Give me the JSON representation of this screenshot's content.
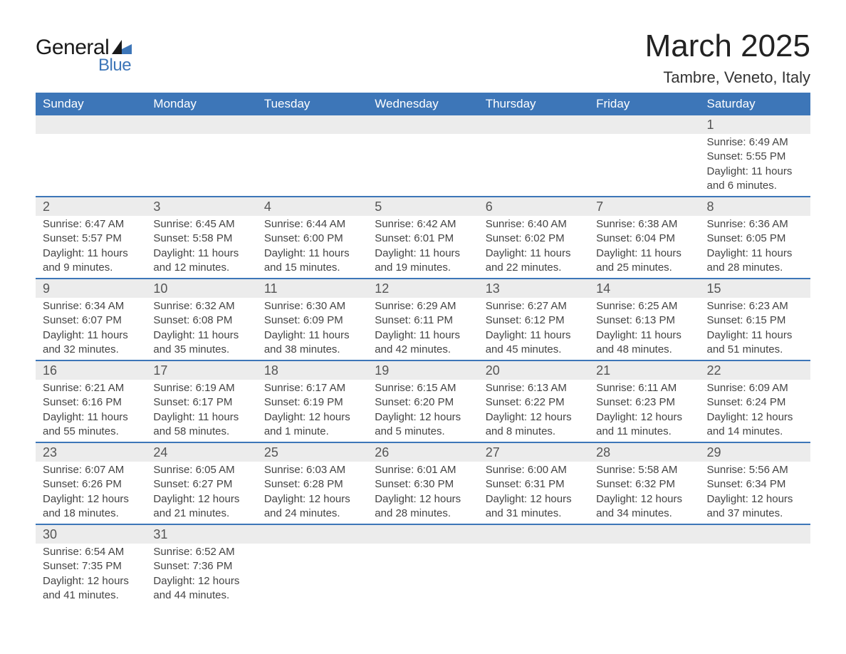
{
  "logo": {
    "word1": "General",
    "word2": "Blue"
  },
  "title": "March 2025",
  "location": "Tambre, Veneto, Italy",
  "colors": {
    "header_bg": "#3d76b8",
    "header_text": "#ffffff",
    "daynum_bg": "#ececec",
    "row_border": "#3d76b8",
    "body_text": "#444444",
    "page_bg": "#ffffff",
    "logo_blue": "#3d76b8"
  },
  "fonts": {
    "title_size": 44,
    "location_size": 22,
    "header_size": 17,
    "daynum_size": 18,
    "cell_size": 15
  },
  "day_headers": [
    "Sunday",
    "Monday",
    "Tuesday",
    "Wednesday",
    "Thursday",
    "Friday",
    "Saturday"
  ],
  "weeks": [
    [
      null,
      null,
      null,
      null,
      null,
      null,
      {
        "n": "1",
        "sr": "Sunrise: 6:49 AM",
        "ss": "Sunset: 5:55 PM",
        "dl": "Daylight: 11 hours and 6 minutes."
      }
    ],
    [
      {
        "n": "2",
        "sr": "Sunrise: 6:47 AM",
        "ss": "Sunset: 5:57 PM",
        "dl": "Daylight: 11 hours and 9 minutes."
      },
      {
        "n": "3",
        "sr": "Sunrise: 6:45 AM",
        "ss": "Sunset: 5:58 PM",
        "dl": "Daylight: 11 hours and 12 minutes."
      },
      {
        "n": "4",
        "sr": "Sunrise: 6:44 AM",
        "ss": "Sunset: 6:00 PM",
        "dl": "Daylight: 11 hours and 15 minutes."
      },
      {
        "n": "5",
        "sr": "Sunrise: 6:42 AM",
        "ss": "Sunset: 6:01 PM",
        "dl": "Daylight: 11 hours and 19 minutes."
      },
      {
        "n": "6",
        "sr": "Sunrise: 6:40 AM",
        "ss": "Sunset: 6:02 PM",
        "dl": "Daylight: 11 hours and 22 minutes."
      },
      {
        "n": "7",
        "sr": "Sunrise: 6:38 AM",
        "ss": "Sunset: 6:04 PM",
        "dl": "Daylight: 11 hours and 25 minutes."
      },
      {
        "n": "8",
        "sr": "Sunrise: 6:36 AM",
        "ss": "Sunset: 6:05 PM",
        "dl": "Daylight: 11 hours and 28 minutes."
      }
    ],
    [
      {
        "n": "9",
        "sr": "Sunrise: 6:34 AM",
        "ss": "Sunset: 6:07 PM",
        "dl": "Daylight: 11 hours and 32 minutes."
      },
      {
        "n": "10",
        "sr": "Sunrise: 6:32 AM",
        "ss": "Sunset: 6:08 PM",
        "dl": "Daylight: 11 hours and 35 minutes."
      },
      {
        "n": "11",
        "sr": "Sunrise: 6:30 AM",
        "ss": "Sunset: 6:09 PM",
        "dl": "Daylight: 11 hours and 38 minutes."
      },
      {
        "n": "12",
        "sr": "Sunrise: 6:29 AM",
        "ss": "Sunset: 6:11 PM",
        "dl": "Daylight: 11 hours and 42 minutes."
      },
      {
        "n": "13",
        "sr": "Sunrise: 6:27 AM",
        "ss": "Sunset: 6:12 PM",
        "dl": "Daylight: 11 hours and 45 minutes."
      },
      {
        "n": "14",
        "sr": "Sunrise: 6:25 AM",
        "ss": "Sunset: 6:13 PM",
        "dl": "Daylight: 11 hours and 48 minutes."
      },
      {
        "n": "15",
        "sr": "Sunrise: 6:23 AM",
        "ss": "Sunset: 6:15 PM",
        "dl": "Daylight: 11 hours and 51 minutes."
      }
    ],
    [
      {
        "n": "16",
        "sr": "Sunrise: 6:21 AM",
        "ss": "Sunset: 6:16 PM",
        "dl": "Daylight: 11 hours and 55 minutes."
      },
      {
        "n": "17",
        "sr": "Sunrise: 6:19 AM",
        "ss": "Sunset: 6:17 PM",
        "dl": "Daylight: 11 hours and 58 minutes."
      },
      {
        "n": "18",
        "sr": "Sunrise: 6:17 AM",
        "ss": "Sunset: 6:19 PM",
        "dl": "Daylight: 12 hours and 1 minute."
      },
      {
        "n": "19",
        "sr": "Sunrise: 6:15 AM",
        "ss": "Sunset: 6:20 PM",
        "dl": "Daylight: 12 hours and 5 minutes."
      },
      {
        "n": "20",
        "sr": "Sunrise: 6:13 AM",
        "ss": "Sunset: 6:22 PM",
        "dl": "Daylight: 12 hours and 8 minutes."
      },
      {
        "n": "21",
        "sr": "Sunrise: 6:11 AM",
        "ss": "Sunset: 6:23 PM",
        "dl": "Daylight: 12 hours and 11 minutes."
      },
      {
        "n": "22",
        "sr": "Sunrise: 6:09 AM",
        "ss": "Sunset: 6:24 PM",
        "dl": "Daylight: 12 hours and 14 minutes."
      }
    ],
    [
      {
        "n": "23",
        "sr": "Sunrise: 6:07 AM",
        "ss": "Sunset: 6:26 PM",
        "dl": "Daylight: 12 hours and 18 minutes."
      },
      {
        "n": "24",
        "sr": "Sunrise: 6:05 AM",
        "ss": "Sunset: 6:27 PM",
        "dl": "Daylight: 12 hours and 21 minutes."
      },
      {
        "n": "25",
        "sr": "Sunrise: 6:03 AM",
        "ss": "Sunset: 6:28 PM",
        "dl": "Daylight: 12 hours and 24 minutes."
      },
      {
        "n": "26",
        "sr": "Sunrise: 6:01 AM",
        "ss": "Sunset: 6:30 PM",
        "dl": "Daylight: 12 hours and 28 minutes."
      },
      {
        "n": "27",
        "sr": "Sunrise: 6:00 AM",
        "ss": "Sunset: 6:31 PM",
        "dl": "Daylight: 12 hours and 31 minutes."
      },
      {
        "n": "28",
        "sr": "Sunrise: 5:58 AM",
        "ss": "Sunset: 6:32 PM",
        "dl": "Daylight: 12 hours and 34 minutes."
      },
      {
        "n": "29",
        "sr": "Sunrise: 5:56 AM",
        "ss": "Sunset: 6:34 PM",
        "dl": "Daylight: 12 hours and 37 minutes."
      }
    ],
    [
      {
        "n": "30",
        "sr": "Sunrise: 6:54 AM",
        "ss": "Sunset: 7:35 PM",
        "dl": "Daylight: 12 hours and 41 minutes."
      },
      {
        "n": "31",
        "sr": "Sunrise: 6:52 AM",
        "ss": "Sunset: 7:36 PM",
        "dl": "Daylight: 12 hours and 44 minutes."
      },
      null,
      null,
      null,
      null,
      null
    ]
  ]
}
